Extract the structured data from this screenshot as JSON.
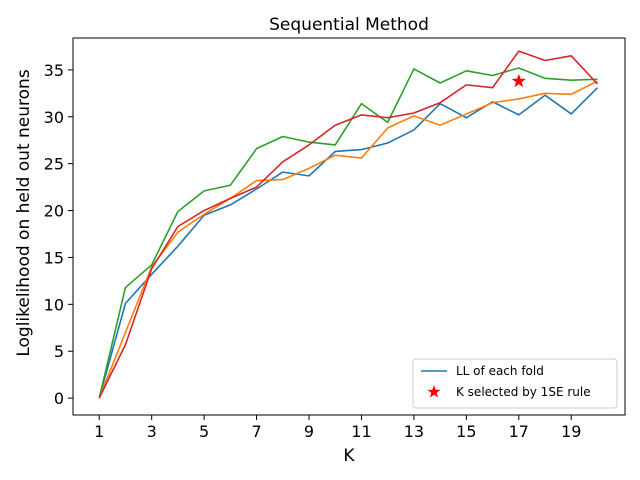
{
  "chart_data": {
    "type": "line",
    "title": "Sequential Method",
    "xlabel": "K",
    "ylabel": "Loglikelihood on held out neurons",
    "xlim": [
      0.0,
      21.05
    ],
    "ylim": [
      -1.8,
      38.4
    ],
    "xticks": [
      1,
      3,
      5,
      7,
      9,
      11,
      13,
      15,
      17,
      19
    ],
    "yticks": [
      0,
      5,
      10,
      15,
      20,
      25,
      30,
      35
    ],
    "grid": false,
    "legend_position": "lower-right",
    "legend": [
      {
        "label": "LL of each fold",
        "kind": "line",
        "color": "#1f77b4"
      },
      {
        "label": "K selected by 1SE rule",
        "kind": "star",
        "color": "#ff0000"
      }
    ],
    "x": [
      1,
      2,
      3,
      4,
      5,
      6,
      7,
      8,
      9,
      10,
      11,
      12,
      13,
      14,
      15,
      16,
      17,
      18,
      19,
      20
    ],
    "series": [
      {
        "color": "#1f77b4",
        "values": [
          0.0,
          10.1,
          13.2,
          16.2,
          19.5,
          20.6,
          22.3,
          24.1,
          23.7,
          26.3,
          26.5,
          27.2,
          28.6,
          31.4,
          29.9,
          31.6,
          30.2,
          32.3,
          30.3,
          33.1
        ]
      },
      {
        "color": "#ff7f0e",
        "values": [
          0.0,
          7.0,
          14.0,
          17.7,
          19.6,
          21.3,
          23.2,
          23.3,
          24.5,
          25.9,
          25.6,
          28.8,
          30.1,
          29.1,
          30.3,
          31.5,
          31.9,
          32.5,
          32.4,
          33.8
        ]
      },
      {
        "color": "#2ca02c",
        "values": [
          0.0,
          11.8,
          14.2,
          19.9,
          22.1,
          22.7,
          26.6,
          27.9,
          27.3,
          27.0,
          31.4,
          29.4,
          35.1,
          33.6,
          34.9,
          34.4,
          35.2,
          34.1,
          33.9,
          34.0
        ]
      },
      {
        "color": "#d62728",
        "values": [
          0.0,
          5.7,
          13.8,
          18.3,
          20.0,
          21.3,
          22.5,
          25.2,
          27.0,
          29.1,
          30.2,
          29.9,
          30.4,
          31.5,
          33.4,
          33.1,
          37.0,
          36.0,
          36.5,
          33.5
        ]
      }
    ],
    "selected": {
      "x": 17,
      "y": 33.8,
      "color": "#ff0000"
    }
  }
}
